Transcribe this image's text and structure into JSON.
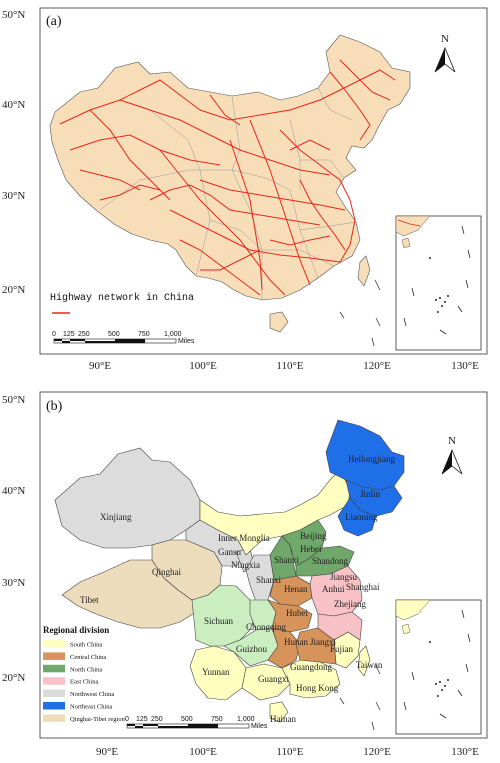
{
  "panel_a": {
    "label": "(a)",
    "legend_label": "Highway network in China",
    "lat_ticks": [
      "50°N",
      "40°N",
      "30°N",
      "20°N"
    ],
    "lon_ticks": [
      "90°E",
      "100°E",
      "110°E",
      "120°E",
      "130°E"
    ],
    "scale_ticks": [
      "0",
      "125",
      "250",
      "500",
      "750",
      "1,000"
    ],
    "scale_unit": "Miles",
    "north": "N"
  },
  "panel_b": {
    "label": "(b)",
    "lat_ticks": [
      "50°N",
      "40°N",
      "30°N",
      "20°N"
    ],
    "lon_ticks": [
      "90°E",
      "100°E",
      "110°E",
      "120°E",
      "130°E"
    ],
    "scale_ticks": [
      "0",
      "125",
      "250",
      "500",
      "750",
      "1,000"
    ],
    "scale_unit": "Miles",
    "north": "N",
    "legend_title": "Regional division",
    "legend": [
      {
        "label": "South China",
        "color": "#ffffc0"
      },
      {
        "label": "Central China",
        "color": "#d6935a"
      },
      {
        "label": "North China",
        "color": "#6fa86a"
      },
      {
        "label": "East China",
        "color": "#f7c1c6"
      },
      {
        "label": "Northwest China",
        "color": "#dcdcdc"
      },
      {
        "label": "Northeast China",
        "color": "#1f6fe8"
      },
      {
        "label": "Qinghai-Tibet region",
        "color": "#ecdcbc"
      }
    ],
    "provinces": {
      "xinjiang": "Xinjiang",
      "tibet": "Tibet",
      "qinghai": "Qinghai",
      "gansu": "Gansu",
      "inner_mongolia": "Inner Monglia",
      "ningxia": "Ningxia",
      "shaanxi": "Shanxi",
      "shanxi": "Shanxi",
      "hebei": "Hebei",
      "beijing": "Beijing",
      "shandong": "Shandong",
      "heilongjiang": "Heilongjiang",
      "jilin": "Jinlin",
      "liaoning": "Liaoning",
      "sichuan": "Sichuan",
      "chongqing": "Chongqing",
      "hubei": "Hubei",
      "henan": "Henan",
      "anhui": "Anhui",
      "jiangsu": "Jiangsu",
      "shanghai": "Shanghai",
      "zhejiang": "Zhejiang",
      "hunan": "Hunan",
      "jiangxi": "Jiangxi",
      "fujian": "Fujian",
      "guizhou": "Guizhou",
      "yunnan": "Yunnan",
      "guangxi": "Guangxi",
      "guangdong": "Guangdong",
      "taiwan": "Taiwan",
      "hongkong": "Hong Kong",
      "hainan": "Hainan"
    }
  },
  "colors": {
    "land": "#f7ddb8",
    "highway": "#e8261a",
    "border": "#999999"
  }
}
